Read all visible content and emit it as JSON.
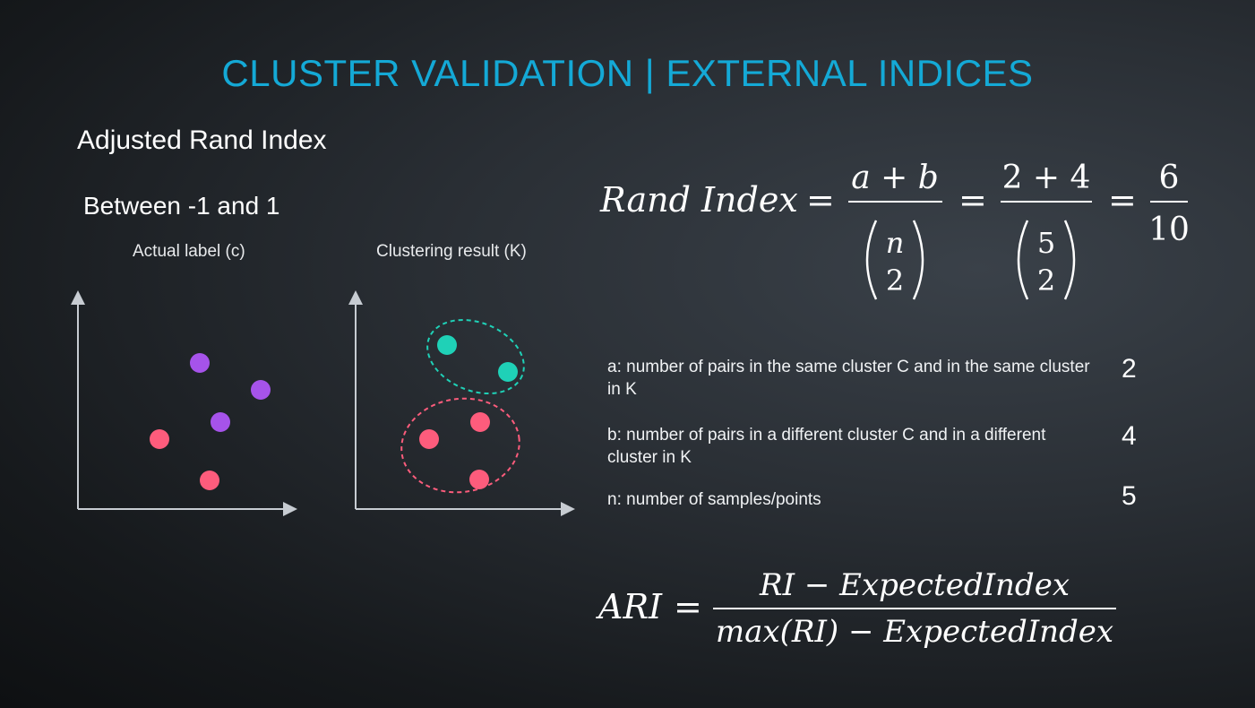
{
  "slide": {
    "title": "CLUSTER VALIDATION | EXTERNAL INDICES",
    "subtitle": "Adjusted Rand Index",
    "range_text": "Between -1 and 1"
  },
  "plots": {
    "left_label": "Actual label (c)",
    "right_label": "Clustering result (K)",
    "colors": {
      "pink": "#fd5c7c",
      "purple": "#a653ea",
      "teal": "#1fd1b7",
      "axis": "#c7ccd2"
    }
  },
  "formula_rand": {
    "lhs": "Rand Index",
    "eq": "=",
    "frac1_num": "a + b",
    "frac1_top": "n",
    "frac1_bottom": "2",
    "frac2_num": "2 + 4",
    "frac2_top": "5",
    "frac2_bottom": "2",
    "frac3_num": "6",
    "frac3_den": "10"
  },
  "definitions": [
    {
      "text": "a: number of pairs in the same cluster C and in the same cluster in K",
      "value": "2"
    },
    {
      "text": "b: number of pairs in a different cluster C and in a different cluster in K",
      "value": "4"
    },
    {
      "text": "n: number of samples/points",
      "value": "5"
    }
  ],
  "formula_ari": {
    "lhs": "ARI",
    "eq": "=",
    "numerator": "RI − ExpectedIndex",
    "denominator": "max(RI) − ExpectedIndex"
  }
}
